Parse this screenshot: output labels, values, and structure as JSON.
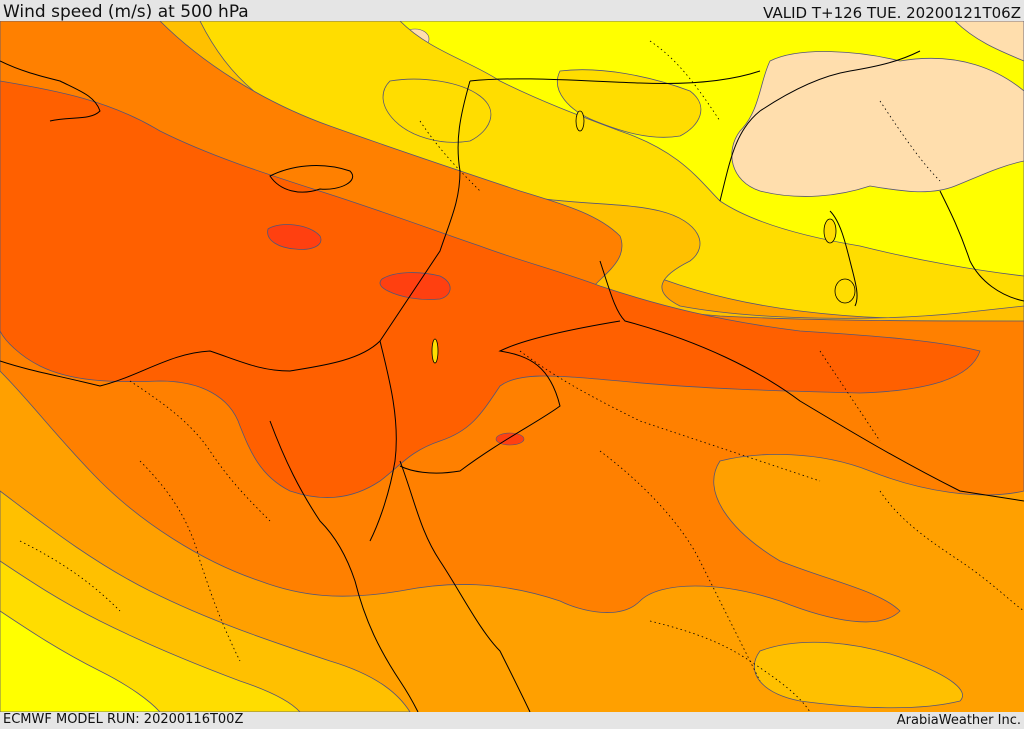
{
  "header": {
    "title": "Wind speed (m/s) at 500 hPa",
    "valid_time": "VALID T+126 TUE. 20200121T06Z"
  },
  "footer": {
    "model_run": "ECMWF MODEL RUN: 20200116T00Z",
    "credit": "ArabiaWeather Inc."
  },
  "map": {
    "field": "wind-speed-500hPa",
    "colors": {
      "band_1": "#ffdead",
      "band_2": "#ffff00",
      "band_3": "#ffdd00",
      "band_4": "#ffc000",
      "band_5": "#ffa000",
      "band_6": "#ff8000",
      "band_7": "#ff6000",
      "band_8": "#ff4010",
      "coastline": "#000000",
      "contour": "#555577"
    }
  }
}
